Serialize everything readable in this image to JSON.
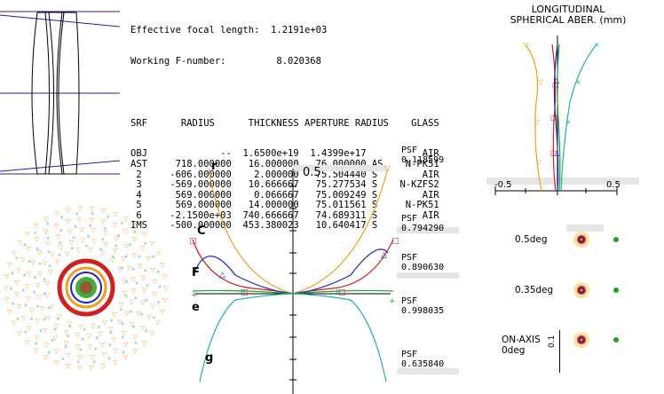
{
  "summary": {
    "efl_label": "Effective focal length:",
    "efl_value": "1.2191e+03",
    "fnum_label": "Working F-number:",
    "fnum_value": "8.020368"
  },
  "table": {
    "headers": [
      "SRF",
      "RADIUS",
      "THICKNESS",
      "APERTURE RADIUS",
      "GLASS"
    ],
    "rows": [
      [
        "OBJ",
        "--",
        "1.6500e+19",
        "1.4399e+17",
        "",
        "AIR"
      ],
      [
        "AST",
        "718.000000",
        "16.000000",
        "76.000000",
        "AS",
        "N-PK51"
      ],
      [
        "2",
        "-606.000000",
        "2.000000",
        "75.504440",
        "S",
        "AIR"
      ],
      [
        "3",
        "-569.000000",
        "10.666667",
        "75.277534",
        "S",
        "N-KZFS2"
      ],
      [
        "4",
        "569.000000",
        "0.066667",
        "75.009249",
        "S",
        "AIR"
      ],
      [
        "5",
        "569.000000",
        "14.000000",
        "75.011561",
        "S",
        "N-PK51"
      ],
      [
        "6",
        "-2.1500e+03",
        "740.666667",
        "74.689311",
        "S",
        "AIR"
      ],
      [
        "IMS",
        "-500.000000",
        "453.380023",
        "10.640417",
        "S",
        ""
      ]
    ]
  },
  "lsa_plot": {
    "title_line1": "LONGITUDINAL",
    "title_line2": "SPHERICAL ABER. (mm)",
    "xmin_label": "-0.5",
    "xmax_label": "0.5"
  },
  "ray_fan": {
    "scale_label": "0.5",
    "curve_labels": {
      "r": "r",
      "C": "C",
      "F": "F",
      "e": "e",
      "g": "g"
    },
    "psf_label": "PSF",
    "psf_values": [
      "0.118599",
      "0.794290",
      "0.890630",
      "0.998035",
      "0.635840"
    ]
  },
  "spots": {
    "fields": [
      "0.5deg",
      "0.35deg",
      "ON-AXIS"
    ],
    "on_axis_sub": "0deg",
    "scale_label": "0.1"
  },
  "colors": {
    "r": "#f0a020",
    "C": "#d02020",
    "F": "#2020d0",
    "e": "#20a020",
    "g": "#20b0b0",
    "lens": "#000000",
    "axis_ray": "#2020a0"
  }
}
